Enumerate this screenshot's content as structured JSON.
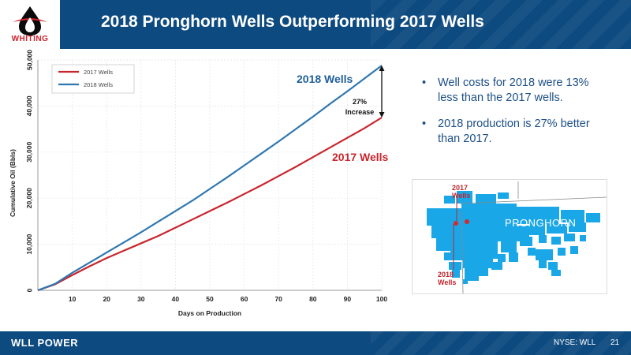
{
  "header": {
    "title": "2018 Pronghorn Wells Outperforming 2017 Wells",
    "logo_text": "WHITING"
  },
  "chart_data": {
    "type": "line",
    "title": "",
    "xlabel": "Days on Production",
    "ylabel": "Cumulative Oil (Bbls)",
    "xlim": [
      0,
      100
    ],
    "ylim": [
      0,
      50000
    ],
    "x_ticks": [
      "10",
      "20",
      "30",
      "40",
      "50",
      "60",
      "70",
      "80",
      "90",
      "100"
    ],
    "y_ticks": [
      "0",
      "10,000",
      "20,000",
      "30,000",
      "40,000",
      "50,000"
    ],
    "grid": true,
    "legend": "top-left",
    "x": [
      0,
      5,
      10,
      15,
      20,
      25,
      30,
      35,
      40,
      45,
      50,
      55,
      60,
      65,
      70,
      75,
      80,
      85,
      90,
      95,
      100
    ],
    "series": [
      {
        "name": "2017 Wells",
        "color": "#c8262c",
        "values": [
          0,
          1300,
          3300,
          5200,
          7000,
          8600,
          10200,
          11800,
          13600,
          15400,
          17200,
          19000,
          20900,
          22800,
          24800,
          26800,
          28900,
          31000,
          33100,
          35200,
          37500
        ]
      },
      {
        "name": "2018 Wells",
        "color": "#2f77b0",
        "values": [
          0,
          1400,
          3800,
          6000,
          8200,
          10400,
          12600,
          14900,
          17200,
          19500,
          22000,
          24500,
          27100,
          29700,
          32300,
          35000,
          37700,
          40500,
          43200,
          46000,
          48800
        ]
      }
    ],
    "annotations": {
      "label_2018": "2018 Wells",
      "label_2017": "2017 Wells",
      "increase_pct": "27%",
      "increase_word": "Increase"
    }
  },
  "bullets": [
    "Well costs for 2018 were 13% less than the 2017 wells.",
    "2018 production is 27% better than 2017."
  ],
  "map": {
    "label_2017": "2017 Wells",
    "label_2018": "2018 Wells",
    "area_label": "PRONGHORN",
    "area_color": "#1aa7e8",
    "well_color": "#d42a2a"
  },
  "footer": {
    "brand": "WLL POWER",
    "ticker": "NYSE: WLL",
    "page": "21"
  }
}
